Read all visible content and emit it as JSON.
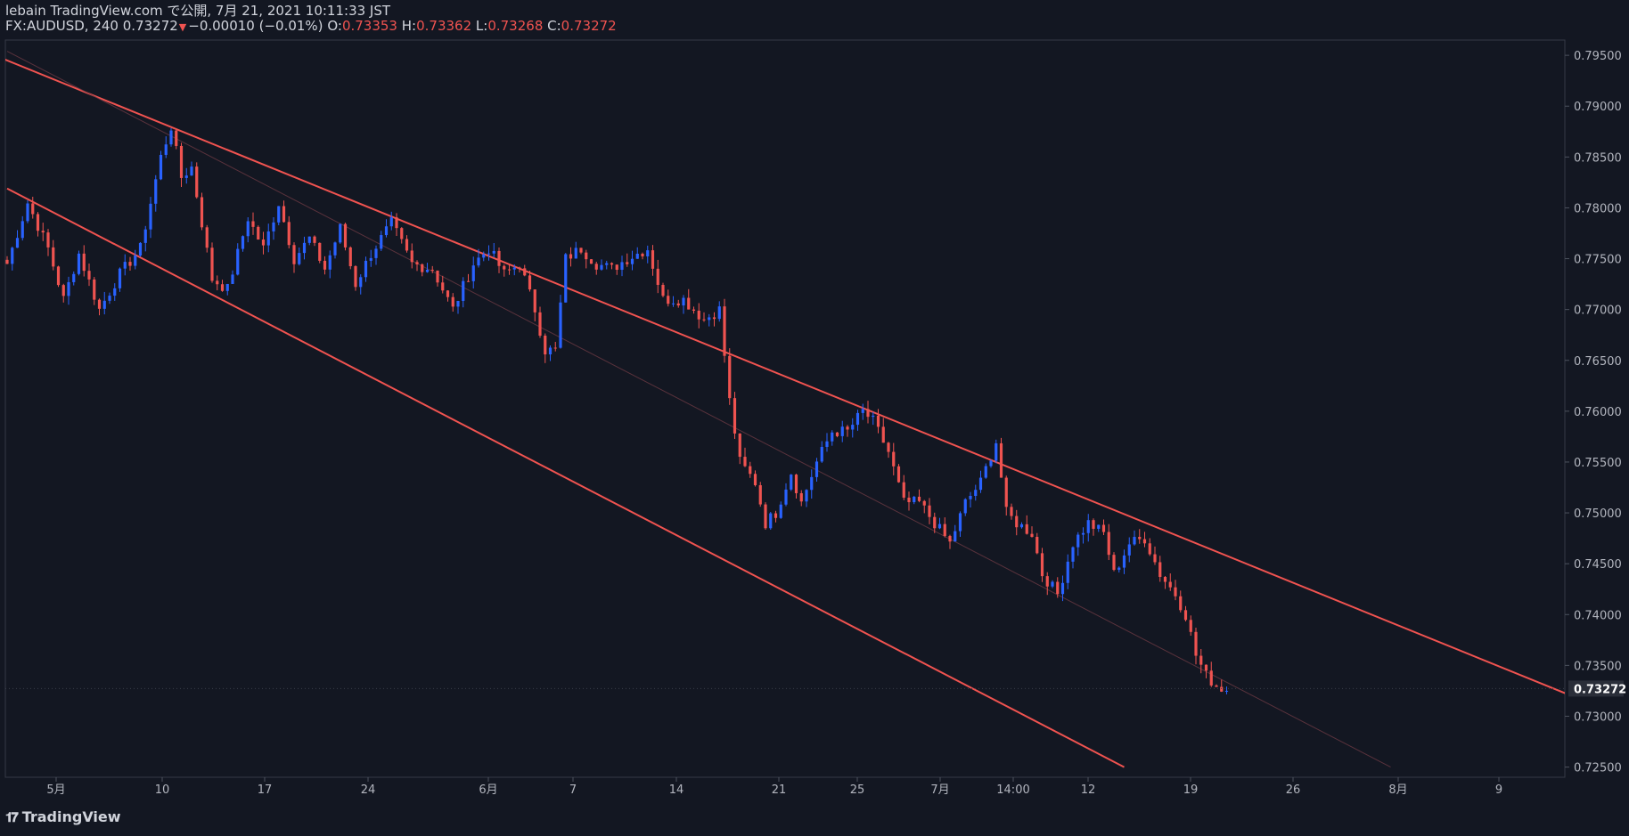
{
  "header": {
    "line1": "lebain TradingView.com で公開, 7月 21, 2021 10:11:33 JST",
    "symbol": "FX:AUDUSD, 240",
    "last": "0.73272",
    "change": "−0.00010 (−0.01%)",
    "o_label": "O:",
    "o_value": "0.73353",
    "h_label": "H:",
    "h_value": "0.73362",
    "l_label": "L:",
    "l_value": "0.73268",
    "c_label": "C:",
    "c_value": "0.73272"
  },
  "brand": {
    "name": "TradingView",
    "logo": "tradingview-logo-icon"
  },
  "colors": {
    "background": "#131722",
    "up": "#2962ff",
    "down": "#ef5350",
    "channel": "#f05350",
    "text": "#b2b5be"
  },
  "chart_data": {
    "type": "candlestick",
    "symbol": "FX:AUDUSD",
    "timeframe": "240",
    "ylim": [
      0.724,
      0.7965
    ],
    "y_ticks": [
      "0.79500",
      "0.79000",
      "0.78500",
      "0.78000",
      "0.77500",
      "0.77000",
      "0.76500",
      "0.76000",
      "0.75500",
      "0.75000",
      "0.74500",
      "0.74000",
      "0.73500",
      "0.73000",
      "0.72500"
    ],
    "x_ticks": [
      "5月",
      "10",
      "17",
      "24",
      "6月",
      "7",
      "14",
      "21",
      "25",
      "7月",
      "14:00",
      "12",
      "19",
      "26",
      "8月",
      "9"
    ],
    "last_price_label": "0.73272",
    "grid": false,
    "waypoints": [
      [
        0,
        0.7745
      ],
      [
        4,
        0.7805
      ],
      [
        8,
        0.776
      ],
      [
        11,
        0.771
      ],
      [
        14,
        0.7755
      ],
      [
        18,
        0.77
      ],
      [
        22,
        0.7735
      ],
      [
        26,
        0.776
      ],
      [
        30,
        0.785
      ],
      [
        32,
        0.788
      ],
      [
        34,
        0.783
      ],
      [
        36,
        0.784
      ],
      [
        40,
        0.773
      ],
      [
        43,
        0.772
      ],
      [
        47,
        0.779
      ],
      [
        50,
        0.776
      ],
      [
        53,
        0.7805
      ],
      [
        56,
        0.775
      ],
      [
        59,
        0.777
      ],
      [
        62,
        0.774
      ],
      [
        65,
        0.778
      ],
      [
        68,
        0.7725
      ],
      [
        71,
        0.7755
      ],
      [
        75,
        0.7785
      ],
      [
        79,
        0.7745
      ],
      [
        83,
        0.774
      ],
      [
        87,
        0.77
      ],
      [
        91,
        0.7745
      ],
      [
        94,
        0.776
      ],
      [
        97,
        0.7735
      ],
      [
        100,
        0.7745
      ],
      [
        103,
        0.77
      ],
      [
        105,
        0.766
      ],
      [
        107,
        0.766
      ],
      [
        109,
        0.775
      ],
      [
        112,
        0.776
      ],
      [
        115,
        0.7745
      ],
      [
        118,
        0.774
      ],
      [
        121,
        0.775
      ],
      [
        125,
        0.776
      ],
      [
        128,
        0.771
      ],
      [
        132,
        0.771
      ],
      [
        136,
        0.769
      ],
      [
        139,
        0.77
      ],
      [
        141,
        0.761
      ],
      [
        143,
        0.755
      ],
      [
        146,
        0.753
      ],
      [
        148,
        0.749
      ],
      [
        150,
        0.75
      ],
      [
        153,
        0.754
      ],
      [
        155,
        0.751
      ],
      [
        158,
        0.755
      ],
      [
        161,
        0.758
      ],
      [
        164,
        0.758
      ],
      [
        167,
        0.76
      ],
      [
        169,
        0.759
      ],
      [
        172,
        0.756
      ],
      [
        175,
        0.751
      ],
      [
        178,
        0.751
      ],
      [
        181,
        0.749
      ],
      [
        184,
        0.747
      ],
      [
        187,
        0.751
      ],
      [
        190,
        0.753
      ],
      [
        193,
        0.757
      ],
      [
        195,
        0.75
      ],
      [
        197,
        0.749
      ],
      [
        200,
        0.748
      ],
      [
        202,
        0.744
      ],
      [
        205,
        0.742
      ],
      [
        208,
        0.747
      ],
      [
        211,
        0.749
      ],
      [
        214,
        0.748
      ],
      [
        216,
        0.744
      ],
      [
        219,
        0.747
      ],
      [
        222,
        0.7475
      ],
      [
        225,
        0.744
      ],
      [
        228,
        0.742
      ],
      [
        230,
        0.74
      ],
      [
        232,
        0.736
      ],
      [
        234,
        0.734
      ],
      [
        236,
        0.733
      ],
      [
        238,
        0.7325
      ]
    ],
    "channel_lines": [
      {
        "name": "upper",
        "points": [
          [
            -22,
            0.799
          ],
          [
            320,
            0.729
          ]
        ]
      },
      {
        "name": "lower",
        "points": [
          [
            0,
            0.7819
          ],
          [
            218,
            0.725
          ]
        ]
      },
      {
        "name": "midline",
        "points": [
          [
            0,
            0.7954
          ],
          [
            270,
            0.725
          ]
        ]
      }
    ]
  }
}
